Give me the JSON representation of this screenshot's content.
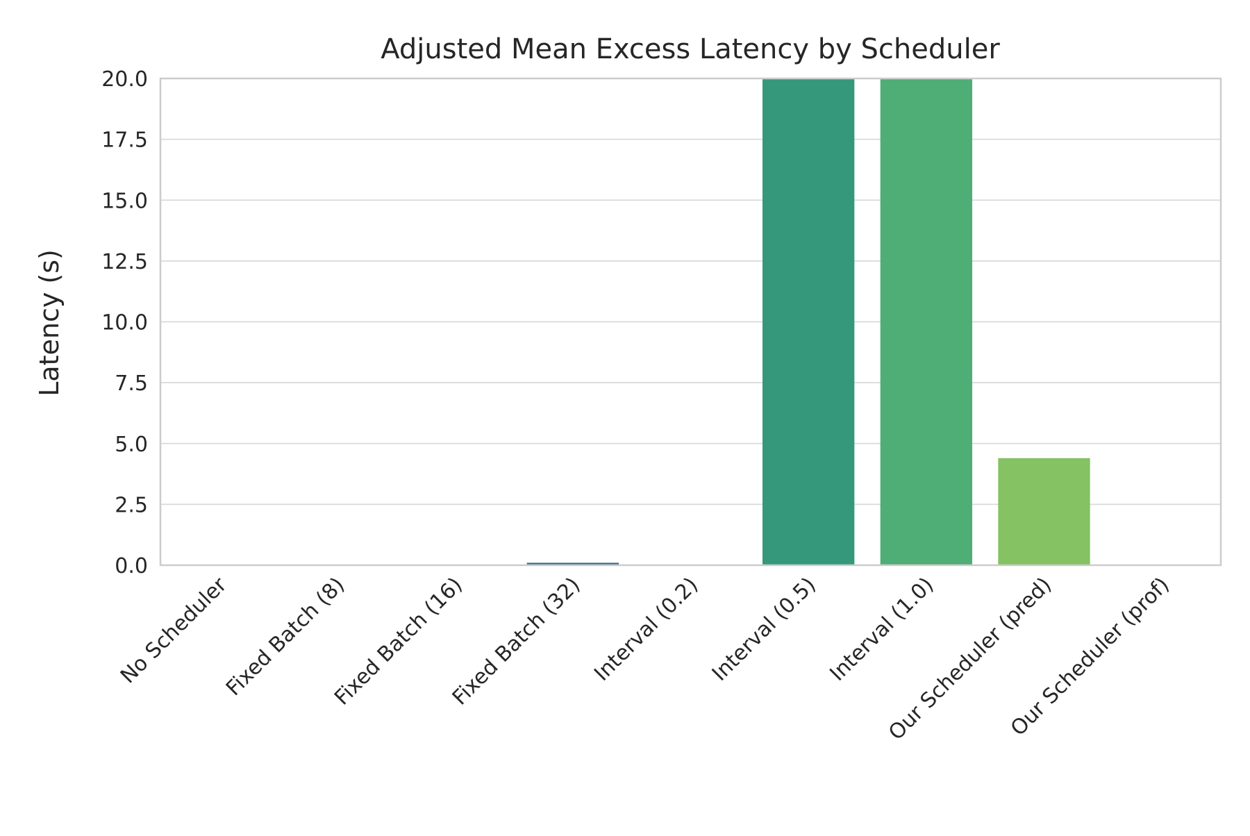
{
  "chart_data": {
    "type": "bar",
    "title": "Adjusted Mean Excess Latency by Scheduler",
    "xlabel": "",
    "ylabel": "Latency (s)",
    "ylim": [
      0,
      20
    ],
    "yticks": [
      "0.0",
      "2.5",
      "5.0",
      "7.5",
      "10.0",
      "12.5",
      "15.0",
      "17.5",
      "20.0"
    ],
    "ytick_values": [
      0,
      2.5,
      5,
      7.5,
      10,
      12.5,
      15,
      17.5,
      20
    ],
    "grid": "horizontal",
    "categories": [
      "No Scheduler",
      "Fixed Batch (8)",
      "Fixed Batch (16)",
      "Fixed Batch (32)",
      "Interval (0.2)",
      "Interval (0.5)",
      "Interval (1.0)",
      "Our Scheduler (pred)",
      "Our Scheduler (prof)"
    ],
    "values": [
      0,
      0,
      0,
      0.1,
      0,
      20,
      20,
      4.4,
      0
    ],
    "colors": [
      "#46327e",
      "#3b528b",
      "#365c8d",
      "#3e6f8a",
      "#277f8e",
      "#35987b",
      "#4fae76",
      "#84c263",
      "#bddf26"
    ]
  }
}
